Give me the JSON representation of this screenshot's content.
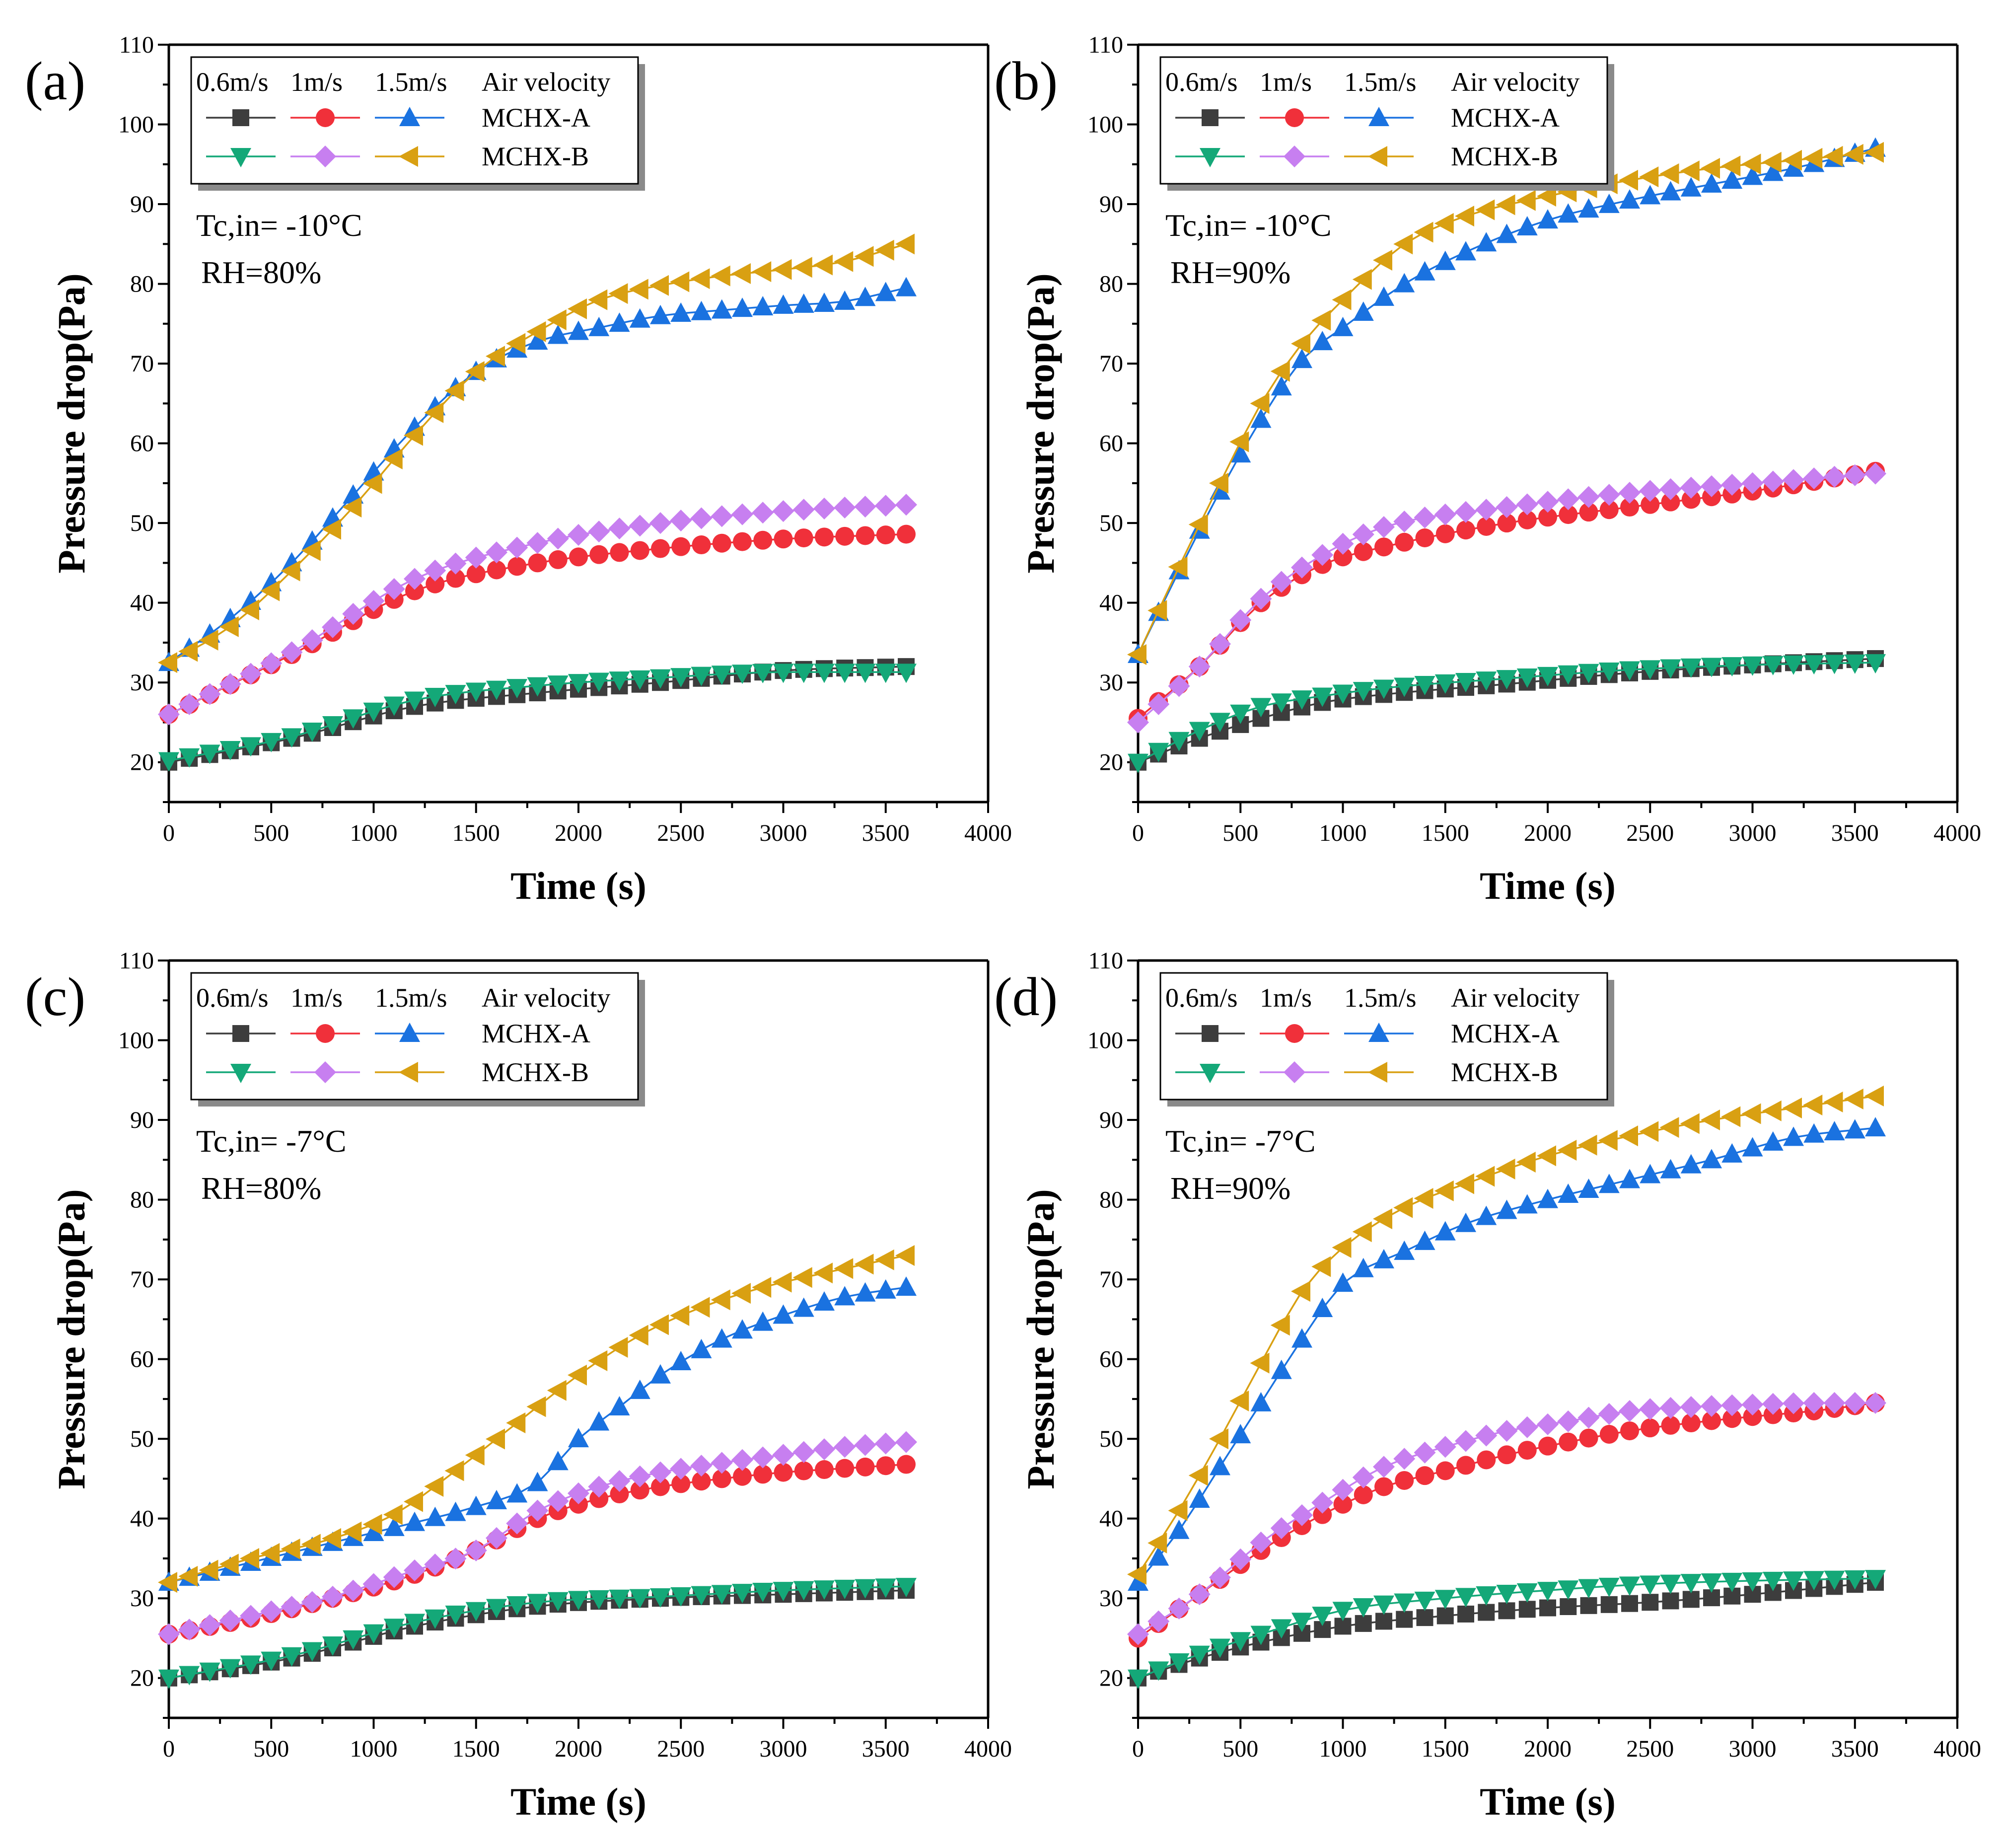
{
  "colors": {
    "s06A": "#3d3d3d",
    "s1A": "#f0303a",
    "s15A": "#1a72e0",
    "s06B": "#14a878",
    "s1B": "#c77ff0",
    "s15B": "#d9a012"
  },
  "legend": {
    "headers": [
      "0.6m/s",
      "1m/s",
      "1.5m/s",
      "Air velocity"
    ],
    "rows": [
      "MCHX-A",
      "MCHX-B"
    ]
  },
  "chart_data": [
    {
      "type": "line",
      "panel": "(a)",
      "xlabel": "Time (s)",
      "ylabel": "Pressure drop(Pa)",
      "xlim": [
        0,
        4000
      ],
      "ylim": [
        15,
        110
      ],
      "xticks": [
        0,
        500,
        1000,
        1500,
        2000,
        2500,
        3000,
        3500,
        4000
      ],
      "yticks": [
        20,
        30,
        40,
        50,
        60,
        70,
        80,
        90,
        100,
        110
      ],
      "annotation": [
        "Tc,in= -10°C",
        "RH=80%"
      ],
      "series": [
        {
          "name": "MCHX-A 0.6m/s",
          "marker": "square",
          "color": "#3d3d3d",
          "x": [
            0,
            600,
            1200,
            1800,
            2400,
            3000,
            3600
          ],
          "y": [
            20,
            23,
            27,
            28.7,
            30,
            31.5,
            32
          ]
        },
        {
          "name": "MCHX-B 0.6m/s",
          "marker": "triangle-down",
          "color": "#14a878",
          "x": [
            0,
            600,
            1200,
            1800,
            2400,
            3000,
            3600
          ],
          "y": [
            20.2,
            23.2,
            27.8,
            29.6,
            30.6,
            31.3,
            31.3
          ]
        },
        {
          "name": "MCHX-A 1m/s",
          "marker": "circle",
          "color": "#f0303a",
          "x": [
            0,
            600,
            1200,
            1800,
            2400,
            3000,
            3600
          ],
          "y": [
            26,
            33.5,
            41.5,
            45,
            46.8,
            48,
            48.6
          ]
        },
        {
          "name": "MCHX-B 1m/s",
          "marker": "diamond",
          "color": "#c77ff0",
          "x": [
            0,
            600,
            1200,
            1800,
            2400,
            3000,
            3600
          ],
          "y": [
            26,
            33.8,
            43,
            47.5,
            50,
            51.5,
            52.3
          ]
        },
        {
          "name": "MCHX-A 1.5m/s",
          "marker": "triangle-up",
          "color": "#1a72e0",
          "x": [
            0,
            300,
            600,
            900,
            1200,
            1500,
            1800,
            2100,
            2400,
            2700,
            3000,
            3300,
            3600
          ],
          "y": [
            32.5,
            38,
            45,
            53.5,
            62,
            69,
            72.8,
            74.5,
            76,
            76.7,
            77.3,
            77.8,
            79.5
          ]
        },
        {
          "name": "MCHX-B 1.5m/s",
          "marker": "triangle-left",
          "color": "#d9a012",
          "x": [
            0,
            300,
            600,
            900,
            1200,
            1500,
            1800,
            2100,
            2400,
            2700,
            3000,
            3300,
            3600
          ],
          "y": [
            32.5,
            37,
            44,
            52,
            61,
            69,
            74,
            78,
            79.8,
            81,
            81.8,
            82.8,
            85
          ]
        }
      ]
    },
    {
      "type": "line",
      "panel": "(b)",
      "xlabel": "Time (s)",
      "ylabel": "Pressure drop(Pa)",
      "xlim": [
        0,
        4000
      ],
      "ylim": [
        15,
        110
      ],
      "xticks": [
        0,
        500,
        1000,
        1500,
        2000,
        2500,
        3000,
        3500,
        4000
      ],
      "yticks": [
        20,
        30,
        40,
        50,
        60,
        70,
        80,
        90,
        100,
        110
      ],
      "annotation": [
        "Tc,in= -10°C",
        "RH=90%"
      ],
      "series": [
        {
          "name": "MCHX-A 0.6m/s",
          "marker": "square",
          "color": "#3d3d3d",
          "x": [
            0,
            300,
            600,
            900,
            1200,
            1800,
            2400,
            3000,
            3600
          ],
          "y": [
            20,
            23,
            25.5,
            27.5,
            28.5,
            29.8,
            31.2,
            32.2,
            33
          ]
        },
        {
          "name": "MCHX-B 0.6m/s",
          "marker": "triangle-down",
          "color": "#14a878",
          "x": [
            0,
            300,
            600,
            900,
            1200,
            1800,
            2400,
            3000,
            3600
          ],
          "y": [
            20,
            24,
            27,
            28.3,
            29.3,
            30.5,
            31.6,
            32.2,
            32.5
          ]
        },
        {
          "name": "MCHX-A 1m/s",
          "marker": "circle",
          "color": "#f0303a",
          "x": [
            0,
            300,
            600,
            900,
            1200,
            1800,
            2400,
            3000,
            3600
          ],
          "y": [
            25.5,
            32,
            40,
            44.8,
            47,
            50,
            52,
            54,
            56.5
          ]
        },
        {
          "name": "MCHX-B 1m/s",
          "marker": "diamond",
          "color": "#c77ff0",
          "x": [
            0,
            300,
            600,
            900,
            1200,
            1800,
            2400,
            3000,
            3600
          ],
          "y": [
            25,
            32,
            40.5,
            46,
            49.5,
            52,
            53.8,
            55,
            56.2
          ]
        },
        {
          "name": "MCHX-A 1.5m/s",
          "marker": "triangle-up",
          "color": "#1a72e0",
          "x": [
            0,
            200,
            400,
            600,
            800,
            1000,
            1300,
            1600,
            2000,
            2400,
            2800,
            3200,
            3600
          ],
          "y": [
            33.5,
            44,
            54,
            63,
            70.5,
            74.5,
            80,
            84,
            88,
            90.5,
            92.5,
            94.5,
            97
          ]
        },
        {
          "name": "MCHX-B 1.5m/s",
          "marker": "triangle-left",
          "color": "#d9a012",
          "x": [
            0,
            200,
            400,
            600,
            800,
            1000,
            1300,
            1600,
            2000,
            2400,
            2800,
            3200,
            3600
          ],
          "y": [
            33.5,
            44.5,
            55,
            65,
            72.5,
            78,
            85,
            88.5,
            91,
            93,
            94.5,
            95.5,
            96.5
          ]
        }
      ]
    },
    {
      "type": "line",
      "panel": "(c)",
      "xlabel": "Time (s)",
      "ylabel": "Pressure drop(Pa)",
      "xlim": [
        0,
        4000
      ],
      "ylim": [
        15,
        110
      ],
      "xticks": [
        0,
        500,
        1000,
        1500,
        2000,
        2500,
        3000,
        3500,
        4000
      ],
      "yticks": [
        20,
        30,
        40,
        50,
        60,
        70,
        80,
        90,
        100,
        110
      ],
      "annotation": [
        "Tc,in= -7°C",
        "RH=80%"
      ],
      "series": [
        {
          "name": "MCHX-A 0.6m/s",
          "marker": "square",
          "color": "#3d3d3d",
          "x": [
            0,
            600,
            1200,
            1800,
            2400,
            3000,
            3600
          ],
          "y": [
            20,
            22.5,
            26.5,
            29,
            30,
            30.5,
            31
          ]
        },
        {
          "name": "MCHX-B 0.6m/s",
          "marker": "triangle-down",
          "color": "#14a878",
          "x": [
            0,
            600,
            1200,
            1800,
            2400,
            3000,
            3600
          ],
          "y": [
            20,
            22.8,
            27,
            29.5,
            30.2,
            31,
            31.5
          ]
        },
        {
          "name": "MCHX-A 1m/s",
          "marker": "circle",
          "color": "#f0303a",
          "x": [
            0,
            400,
            800,
            1200,
            1500,
            1800,
            2100,
            2400,
            2700,
            3000,
            3300,
            3600
          ],
          "y": [
            25.5,
            27.5,
            30,
            33,
            36,
            40,
            42.5,
            44,
            45,
            45.8,
            46.3,
            46.8
          ]
        },
        {
          "name": "MCHX-B 1m/s",
          "marker": "diamond",
          "color": "#c77ff0",
          "x": [
            0,
            400,
            800,
            1200,
            1500,
            1800,
            2100,
            2400,
            2700,
            3000,
            3300,
            3600
          ],
          "y": [
            25.5,
            27.8,
            30.2,
            33.5,
            36,
            41,
            44,
            45.8,
            47,
            48,
            49,
            49.6
          ]
        },
        {
          "name": "MCHX-A 1.5m/s",
          "marker": "triangle-up",
          "color": "#1a72e0",
          "x": [
            0,
            400,
            800,
            1200,
            1500,
            1800,
            2000,
            2200,
            2400,
            2700,
            3000,
            3300,
            3600
          ],
          "y": [
            32,
            34.5,
            37,
            39.5,
            41.5,
            44.5,
            50,
            54,
            58,
            62.5,
            65.5,
            67.8,
            69
          ]
        },
        {
          "name": "MCHX-B 1.5m/s",
          "marker": "triangle-left",
          "color": "#d9a012",
          "x": [
            0,
            400,
            800,
            1100,
            1400,
            1700,
            2000,
            2300,
            2600,
            2900,
            3200,
            3600
          ],
          "y": [
            32,
            35,
            37.5,
            40.5,
            46,
            52,
            58,
            63,
            66.5,
            69,
            70.8,
            73
          ]
        }
      ]
    },
    {
      "type": "line",
      "panel": "(d)",
      "xlabel": "Time (s)",
      "ylabel": "Pressure drop(Pa)",
      "xlim": [
        0,
        4000
      ],
      "ylim": [
        15,
        110
      ],
      "xticks": [
        0,
        500,
        1000,
        1500,
        2000,
        2500,
        3000,
        3500,
        4000
      ],
      "yticks": [
        20,
        30,
        40,
        50,
        60,
        70,
        80,
        90,
        100,
        110
      ],
      "annotation": [
        "Tc,in= -7°C",
        "RH=90%"
      ],
      "series": [
        {
          "name": "MCHX-A 0.6m/s",
          "marker": "square",
          "color": "#3d3d3d",
          "x": [
            0,
            300,
            600,
            1000,
            1500,
            2000,
            2500,
            3000,
            3600
          ],
          "y": [
            20,
            22.5,
            24.5,
            26.5,
            27.8,
            28.8,
            29.5,
            30.5,
            32
          ]
        },
        {
          "name": "MCHX-B 0.6m/s",
          "marker": "triangle-down",
          "color": "#14a878",
          "x": [
            0,
            300,
            600,
            1000,
            1500,
            2000,
            2500,
            3000,
            3600
          ],
          "y": [
            20,
            23,
            25.5,
            28.5,
            30,
            31,
            31.8,
            32.2,
            32.5
          ]
        },
        {
          "name": "MCHX-A 1m/s",
          "marker": "circle",
          "color": "#f0303a",
          "x": [
            0,
            300,
            600,
            900,
            1200,
            1500,
            1800,
            2100,
            2400,
            2700,
            3000,
            3300,
            3600
          ],
          "y": [
            25,
            30.5,
            36,
            40.5,
            44,
            46,
            48,
            49.6,
            51,
            52,
            52.8,
            53.5,
            54.5
          ]
        },
        {
          "name": "MCHX-B 1m/s",
          "marker": "diamond",
          "color": "#c77ff0",
          "x": [
            0,
            300,
            600,
            900,
            1200,
            1500,
            1800,
            2100,
            2400,
            2700,
            3000,
            3300,
            3600
          ],
          "y": [
            25.5,
            30.5,
            37,
            42,
            46.5,
            49,
            51,
            52.2,
            53.5,
            54,
            54.3,
            54.5,
            54.5
          ]
        },
        {
          "name": "MCHX-A 1.5m/s",
          "marker": "triangle-up",
          "color": "#1a72e0",
          "x": [
            0,
            200,
            400,
            600,
            800,
            1000,
            1300,
            1600,
            2000,
            2400,
            2800,
            3200,
            3600
          ],
          "y": [
            32,
            38.5,
            46.5,
            54.5,
            62.5,
            69.5,
            73.5,
            77,
            80,
            82.5,
            85,
            87.8,
            89
          ]
        },
        {
          "name": "MCHX-B 1.5m/s",
          "marker": "triangle-left",
          "color": "#d9a012",
          "x": [
            0,
            200,
            400,
            600,
            800,
            1000,
            1300,
            1600,
            2000,
            2400,
            2800,
            3200,
            3600
          ],
          "y": [
            33,
            41,
            50,
            59.5,
            68.5,
            74,
            79,
            82,
            85.5,
            88,
            90,
            91.5,
            93
          ]
        }
      ]
    }
  ]
}
